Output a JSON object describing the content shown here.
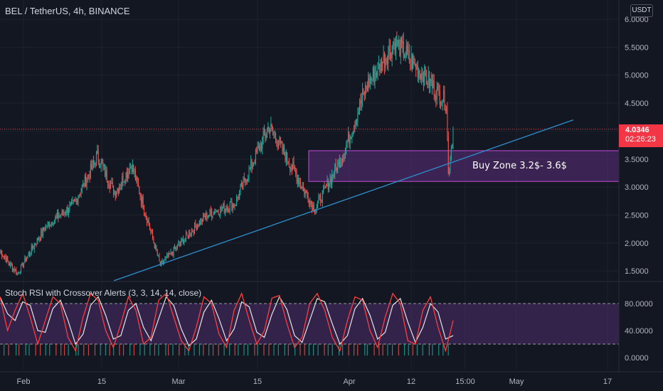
{
  "header": {
    "title": "BEL / TetherUS, 4h, BINANCE",
    "currency": "USDT"
  },
  "price_tag": {
    "price": "4.0346",
    "countdown": "02:26:23"
  },
  "annotation": {
    "buy_zone_label": "Buy Zone 3.2$- 3.6$"
  },
  "indicator": {
    "label": "Stoch RSI with Crossover Alerts (3, 3, 14, 14, close)"
  },
  "colors": {
    "up": "#26a69a",
    "down": "#ef5350",
    "trendline": "#2f8fd0",
    "zone_border": "#c44bd6",
    "zone_fill": "#4a2a64",
    "k_line": "#ff3d3d",
    "d_line": "#e6e6e6",
    "price_line": "#f23645"
  },
  "chart_data": [
    {
      "type": "candlestick",
      "title": "BEL / TetherUS, 4h, BINANCE",
      "y_ticks": [
        "6.0000",
        "5.5000",
        "5.0000",
        "4.5000",
        "4.0000",
        "3.5000",
        "3.0000",
        "2.5000",
        "2.0000",
        "1.5000"
      ],
      "ylim": [
        1.3,
        6.05
      ],
      "x_ticks": [
        "Feb",
        "15",
        "Mar",
        "15",
        "Apr",
        "12",
        "15:00",
        "May",
        "17"
      ],
      "last_price": 4.0346,
      "key_points": [
        {
          "x": "Jan 28",
          "close": 1.85
        },
        {
          "x": "Jan 31",
          "close": 1.45
        },
        {
          "x": "Feb 5",
          "close": 2.3
        },
        {
          "x": "Feb 10",
          "close": 2.7
        },
        {
          "x": "Feb 14",
          "close": 3.55
        },
        {
          "x": "Feb 17",
          "close": 2.9
        },
        {
          "x": "Feb 20",
          "close": 3.4
        },
        {
          "x": "Feb 25",
          "close": 1.6
        },
        {
          "x": "Mar 5",
          "close": 2.5
        },
        {
          "x": "Mar 10",
          "close": 2.7
        },
        {
          "x": "Mar 16",
          "close": 4.1
        },
        {
          "x": "Mar 24",
          "close": 2.6
        },
        {
          "x": "Mar 29",
          "close": 3.6
        },
        {
          "x": "Apr 2",
          "close": 4.8
        },
        {
          "x": "Apr 7",
          "close": 5.6
        },
        {
          "x": "Apr 12",
          "close": 5.0
        },
        {
          "x": "Apr 16",
          "close": 4.5
        },
        {
          "x": "Apr 18",
          "close": 3.2
        },
        {
          "x": "Apr 19",
          "close": 4.03
        }
      ],
      "buy_zone": {
        "low": 3.1,
        "high": 3.65,
        "label": "Buy Zone 3.2$- 3.6$"
      },
      "trendline": {
        "start": {
          "x": "Feb 18",
          "y": 1.3
        },
        "end": {
          "x": "May 6",
          "y": 4.2
        }
      }
    },
    {
      "type": "line",
      "title": "Stoch RSI with Crossover Alerts (3, 3, 14, 14, close)",
      "y_ticks": [
        "80.0000",
        "40.0000",
        "0.0000"
      ],
      "ylim": [
        -5,
        100
      ],
      "bands": [
        20,
        80
      ],
      "series": [
        {
          "name": "",
          "values": [
            90,
            40,
            70,
            95,
            60,
            20,
            55,
            90,
            80,
            30,
            10,
            60,
            95,
            85,
            40,
            15,
            50,
            90,
            70,
            20,
            30,
            85,
            95,
            60,
            25,
            10,
            45,
            90,
            80,
            35,
            15,
            70,
            95,
            55,
            20,
            40,
            88,
            92,
            50,
            15,
            30,
            80,
            95,
            70,
            30,
            10,
            55,
            90,
            85,
            40,
            15,
            60,
            95,
            80,
            25,
            20,
            70,
            90,
            45,
            10,
            55
          ]
        }
      ]
    }
  ]
}
